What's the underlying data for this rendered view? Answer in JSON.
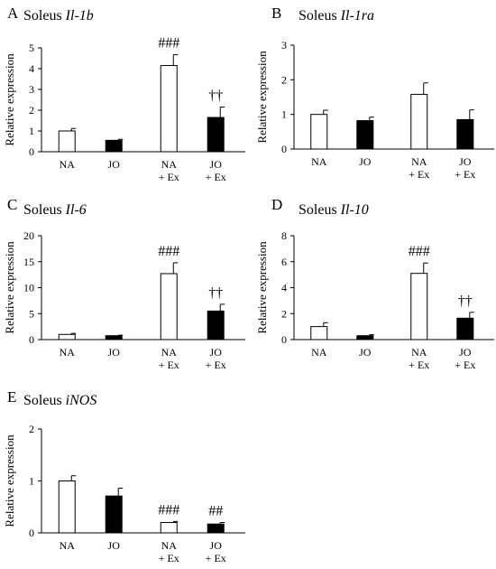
{
  "chart_data": [
    {
      "letter": "A",
      "title_prefix": "Soleus",
      "gene": "Il-1b",
      "type": "bar",
      "categories": [
        [
          "NA"
        ],
        [
          "JO"
        ],
        [
          "NA",
          "+ Ex"
        ],
        [
          "JO",
          "+ Ex"
        ]
      ],
      "ylabel": "Relative expression",
      "ylim": [
        0,
        5
      ],
      "yticks": [
        0,
        1,
        2,
        3,
        4,
        5
      ],
      "values": [
        1.0,
        0.55,
        4.15,
        1.65
      ],
      "errors": [
        0.12,
        0.05,
        0.52,
        0.5
      ],
      "fills": [
        "white",
        "black",
        "white",
        "black"
      ],
      "annotations": [
        "",
        "",
        "###",
        "††"
      ]
    },
    {
      "letter": "B",
      "title_prefix": "Soleus",
      "gene": "Il-1ra",
      "type": "bar",
      "categories": [
        [
          "NA"
        ],
        [
          "JO"
        ],
        [
          "NA",
          "+ Ex"
        ],
        [
          "JO",
          "+ Ex"
        ]
      ],
      "ylabel": "Relative expression",
      "ylim": [
        0,
        3
      ],
      "yticks": [
        0,
        1,
        2,
        3
      ],
      "values": [
        1.0,
        0.82,
        1.58,
        0.85
      ],
      "errors": [
        0.12,
        0.1,
        0.33,
        0.28
      ],
      "fills": [
        "white",
        "black",
        "white",
        "black"
      ],
      "annotations": [
        "",
        "",
        "",
        ""
      ]
    },
    {
      "letter": "C",
      "title_prefix": "Soleus",
      "gene": "Il-6",
      "type": "bar",
      "categories": [
        [
          "NA"
        ],
        [
          "JO"
        ],
        [
          "NA",
          "+ Ex"
        ],
        [
          "JO",
          "+ Ex"
        ]
      ],
      "ylabel": "Relative expression",
      "ylim": [
        0,
        20
      ],
      "yticks": [
        0,
        5,
        10,
        15,
        20
      ],
      "values": [
        1.0,
        0.75,
        12.7,
        5.5
      ],
      "errors": [
        0.2,
        0.1,
        2.1,
        1.3
      ],
      "fills": [
        "white",
        "black",
        "white",
        "black"
      ],
      "annotations": [
        "",
        "",
        "###",
        "††"
      ]
    },
    {
      "letter": "D",
      "title_prefix": "Soleus",
      "gene": "Il-10",
      "type": "bar",
      "categories": [
        [
          "NA"
        ],
        [
          "JO"
        ],
        [
          "NA",
          "+ Ex"
        ],
        [
          "JO",
          "+ Ex"
        ]
      ],
      "ylabel": "Relative expression",
      "ylim": [
        0,
        8
      ],
      "yticks": [
        0,
        2,
        4,
        6,
        8
      ],
      "values": [
        1.0,
        0.3,
        5.1,
        1.65
      ],
      "errors": [
        0.3,
        0.08,
        0.8,
        0.45
      ],
      "fills": [
        "white",
        "black",
        "white",
        "black"
      ],
      "annotations": [
        "",
        "",
        "###",
        "††"
      ]
    },
    {
      "letter": "E",
      "title_prefix": "Soleus",
      "gene": "iNOS",
      "type": "bar",
      "categories": [
        [
          "NA"
        ],
        [
          "JO"
        ],
        [
          "NA",
          "+ Ex"
        ],
        [
          "JO",
          "+ Ex"
        ]
      ],
      "ylabel": "Relative expression",
      "ylim": [
        0,
        2
      ],
      "yticks": [
        0,
        1,
        2
      ],
      "values": [
        1.0,
        0.71,
        0.2,
        0.17
      ],
      "errors": [
        0.1,
        0.15,
        0.02,
        0.03
      ],
      "fills": [
        "white",
        "black",
        "white",
        "black"
      ],
      "annotations": [
        "",
        "",
        "###",
        "##"
      ]
    }
  ]
}
